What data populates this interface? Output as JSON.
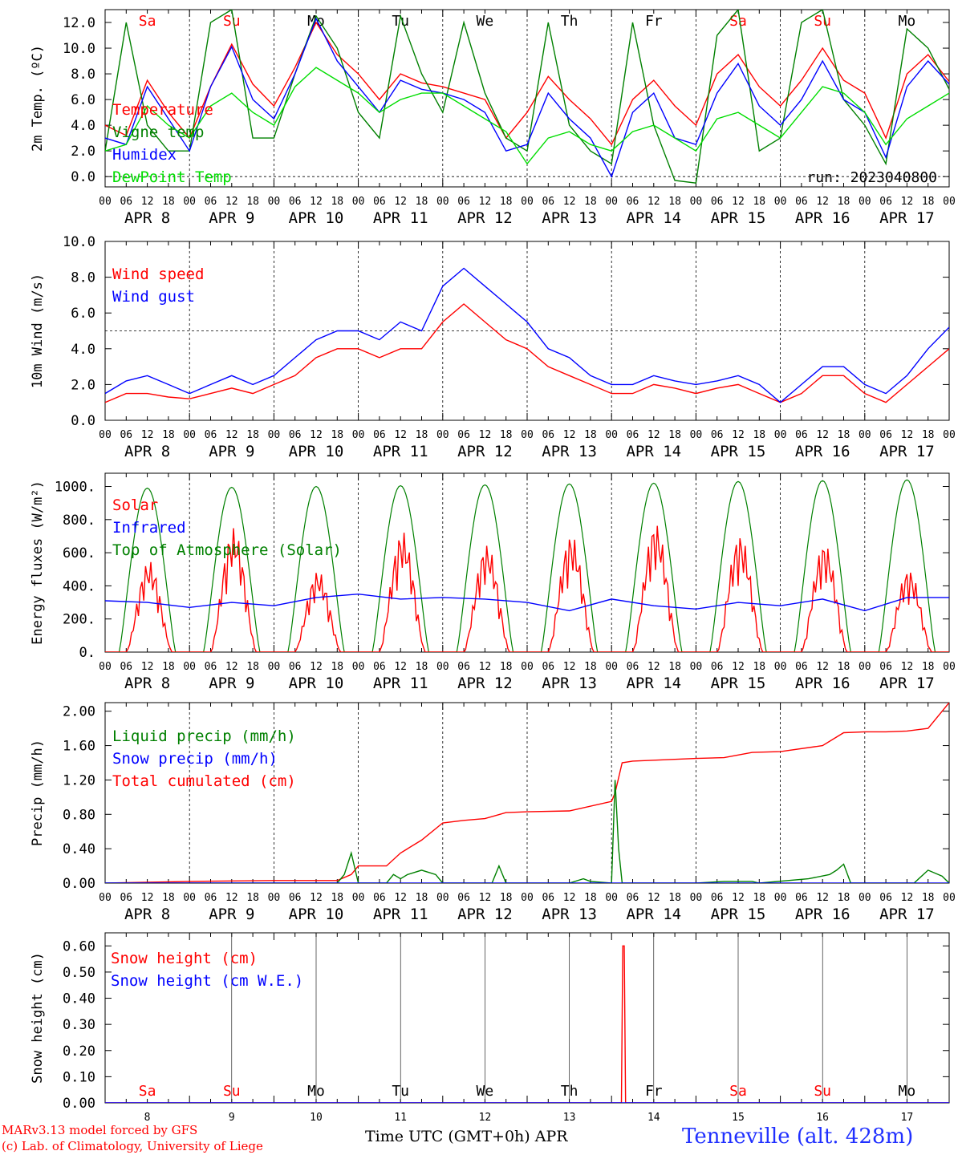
{
  "meta": {
    "title": "Tenneville (alt. 428m)",
    "model": "MARv3.13 model forced by GFS",
    "credit": "(c) Lab. of Climatology, University of Liege",
    "xlabel": "Time UTC (GMT+0h) APR",
    "run": "run: 2023040800",
    "colors": {
      "red": "#ff0000",
      "green": "#008000",
      "blue": "#0000ff",
      "light_green": "#00dd00",
      "purple": "#800080"
    }
  },
  "chart_data": [
    {
      "type": "line",
      "ylabel": "2m Temp. (ºC)",
      "ylim": [
        -0.8,
        13
      ],
      "yticks": [
        0.0,
        2.0,
        4.0,
        6.0,
        8.0,
        10.0,
        12.0
      ],
      "ytick_labels": [
        "0.0",
        "2.0",
        "4.0",
        "6.0",
        "8.0",
        "10.0",
        "12.0"
      ],
      "xlim_hours": [
        0,
        240
      ],
      "day_labels": [
        "APR 8",
        "APR 9",
        "APR 10",
        "APR 11",
        "APR 12",
        "APR 13",
        "APR 14",
        "APR 15",
        "APR 16",
        "APR 17"
      ],
      "hour_ticks": [
        "00",
        "06",
        "12",
        "18"
      ],
      "weekdays": [
        "Sa",
        "Su",
        "Mo",
        "Tu",
        "We",
        "Th",
        "Fr",
        "Sa",
        "Su",
        "Mo"
      ],
      "weekday_colors": [
        "#ff0000",
        "#ff0000",
        "#000000",
        "#000000",
        "#000000",
        "#000000",
        "#000000",
        "#ff0000",
        "#ff0000",
        "#000000"
      ],
      "hline": 0,
      "legend": [
        "Temperature",
        "Vigne temp",
        "Humidex",
        "DewPoint Temp"
      ],
      "series": [
        {
          "name": "Temperature",
          "color": "#ff0000",
          "x": [
            0,
            6,
            12,
            18,
            24,
            30,
            36,
            42,
            48,
            54,
            60,
            66,
            72,
            78,
            84,
            90,
            96,
            102,
            108,
            114,
            120,
            126,
            132,
            138,
            144,
            150,
            156,
            162,
            168,
            174,
            180,
            186,
            192,
            198,
            204,
            210,
            216,
            222,
            228,
            234,
            240
          ],
          "values": [
            4.0,
            3.2,
            7.5,
            5.0,
            3.0,
            7.0,
            10.3,
            7.2,
            5.5,
            8.5,
            12.0,
            9.5,
            8.0,
            6.0,
            8.0,
            7.3,
            7.0,
            6.5,
            6.0,
            3.0,
            5.0,
            7.8,
            6.0,
            4.5,
            2.5,
            6.0,
            7.5,
            5.5,
            4.0,
            8.0,
            9.5,
            7.0,
            5.5,
            7.5,
            10.0,
            7.5,
            6.5,
            3.0,
            8.0,
            9.5,
            7.4
          ]
        },
        {
          "name": "Vigne temp",
          "color": "#008000",
          "x": [
            0,
            6,
            12,
            18,
            24,
            30,
            36,
            42,
            48,
            54,
            60,
            66,
            72,
            78,
            84,
            90,
            96,
            102,
            108,
            114,
            120,
            126,
            132,
            138,
            144,
            150,
            156,
            162,
            168,
            174,
            180,
            186,
            192,
            198,
            204,
            210,
            216,
            222,
            228,
            234,
            240
          ],
          "values": [
            2.0,
            12.0,
            4.0,
            2.0,
            2.0,
            12.0,
            13.0,
            3.0,
            3.0,
            8.0,
            12.5,
            10.0,
            5.0,
            3.0,
            12.5,
            8.0,
            5.0,
            12.0,
            6.5,
            3.0,
            2.0,
            12.0,
            4.0,
            2.0,
            1.0,
            12.0,
            4.0,
            -0.3,
            -0.5,
            11.0,
            13.0,
            2.0,
            3.0,
            12.0,
            13.0,
            6.0,
            4.0,
            1.0,
            11.5,
            10.0,
            6.8
          ]
        },
        {
          "name": "Humidex",
          "color": "#0000ff",
          "x": [
            0,
            6,
            12,
            18,
            24,
            30,
            36,
            42,
            48,
            54,
            60,
            66,
            72,
            78,
            84,
            90,
            96,
            102,
            108,
            114,
            120,
            126,
            132,
            138,
            144,
            150,
            156,
            162,
            168,
            174,
            180,
            186,
            192,
            198,
            204,
            210,
            216,
            222,
            228,
            234,
            240
          ],
          "values": [
            3.0,
            2.5,
            7.0,
            4.5,
            2.0,
            7.0,
            10.1,
            6.0,
            4.5,
            8.0,
            12.3,
            9.0,
            7.0,
            5.0,
            7.5,
            6.8,
            6.5,
            6.0,
            5.0,
            2.0,
            2.5,
            6.5,
            4.5,
            3.0,
            0.0,
            5.0,
            6.5,
            3.0,
            2.5,
            6.5,
            8.8,
            5.5,
            4.0,
            6.0,
            9.0,
            6.0,
            5.0,
            1.5,
            7.0,
            9.0,
            7.2
          ]
        },
        {
          "name": "DewPoint Temp",
          "color": "#00dd00",
          "x": [
            0,
            6,
            12,
            18,
            24,
            30,
            36,
            42,
            48,
            54,
            60,
            66,
            72,
            78,
            84,
            90,
            96,
            102,
            108,
            114,
            120,
            126,
            132,
            138,
            144,
            150,
            156,
            162,
            168,
            174,
            180,
            186,
            192,
            198,
            204,
            210,
            216,
            222,
            228,
            234,
            240
          ],
          "values": [
            2.0,
            2.5,
            5.5,
            4.0,
            3.0,
            5.5,
            6.5,
            5.0,
            4.0,
            7.0,
            8.5,
            7.5,
            6.5,
            5.0,
            6.0,
            6.5,
            6.5,
            5.5,
            4.5,
            3.5,
            1.0,
            3.0,
            3.5,
            2.5,
            2.0,
            3.5,
            4.0,
            3.0,
            2.0,
            4.5,
            5.0,
            4.0,
            3.0,
            5.0,
            7.0,
            6.5,
            5.0,
            2.5,
            4.5,
            5.5,
            6.5
          ]
        }
      ]
    },
    {
      "type": "line",
      "ylabel": "10m Wind (m/s)",
      "ylim": [
        0,
        10
      ],
      "yticks": [
        0.0,
        2.0,
        4.0,
        6.0,
        8.0,
        10.0
      ],
      "ytick_labels": [
        "0.0",
        "2.0",
        "4.0",
        "6.0",
        "8.0",
        "10.0"
      ],
      "xlim_hours": [
        0,
        240
      ],
      "day_labels": [
        "APR 8",
        "APR 9",
        "APR 10",
        "APR 11",
        "APR 12",
        "APR 13",
        "APR 14",
        "APR 15",
        "APR 16",
        "APR 17"
      ],
      "hour_ticks": [
        "00",
        "06",
        "12",
        "18"
      ],
      "hline": 5.0,
      "legend": [
        "Wind speed",
        "Wind gust"
      ],
      "series": [
        {
          "name": "Wind speed",
          "color": "#ff0000",
          "x": [
            0,
            6,
            12,
            18,
            24,
            30,
            36,
            42,
            48,
            54,
            60,
            66,
            72,
            78,
            84,
            90,
            96,
            102,
            108,
            114,
            120,
            126,
            132,
            138,
            144,
            150,
            156,
            162,
            168,
            174,
            180,
            186,
            192,
            198,
            204,
            210,
            216,
            222,
            228,
            234,
            240
          ],
          "values": [
            1.0,
            1.5,
            1.5,
            1.3,
            1.2,
            1.5,
            1.8,
            1.5,
            2.0,
            2.5,
            3.5,
            4.0,
            4.0,
            3.5,
            4.0,
            4.0,
            5.5,
            6.5,
            5.5,
            4.5,
            4.0,
            3.0,
            2.5,
            2.0,
            1.5,
            1.5,
            2.0,
            1.8,
            1.5,
            1.8,
            2.0,
            1.5,
            1.0,
            1.5,
            2.5,
            2.5,
            1.5,
            1.0,
            2.0,
            3.0,
            4.0
          ]
        },
        {
          "name": "Wind gust",
          "color": "#0000ff",
          "x": [
            0,
            6,
            12,
            18,
            24,
            30,
            36,
            42,
            48,
            54,
            60,
            66,
            72,
            78,
            84,
            90,
            96,
            102,
            108,
            114,
            120,
            126,
            132,
            138,
            144,
            150,
            156,
            162,
            168,
            174,
            180,
            186,
            192,
            198,
            204,
            210,
            216,
            222,
            228,
            234,
            240
          ],
          "values": [
            1.5,
            2.2,
            2.5,
            2.0,
            1.5,
            2.0,
            2.5,
            2.0,
            2.5,
            3.5,
            4.5,
            5.0,
            5.0,
            4.5,
            5.5,
            5.0,
            7.5,
            8.5,
            7.5,
            6.5,
            5.5,
            4.0,
            3.5,
            2.5,
            2.0,
            2.0,
            2.5,
            2.2,
            2.0,
            2.2,
            2.5,
            2.0,
            1.0,
            2.0,
            3.0,
            3.0,
            2.0,
            1.5,
            2.5,
            4.0,
            5.2
          ]
        }
      ]
    },
    {
      "type": "line",
      "ylabel": "Energy fluxes (W/m²)",
      "ylim": [
        0,
        1080
      ],
      "yticks": [
        0,
        200,
        400,
        600,
        800,
        1000
      ],
      "ytick_labels": [
        "0.",
        "200.",
        "400.",
        "600.",
        "800.",
        "1000."
      ],
      "xlim_hours": [
        0,
        240
      ],
      "day_labels": [
        "APR 8",
        "APR 9",
        "APR 10",
        "APR 11",
        "APR 12",
        "APR 13",
        "APR 14",
        "APR 15",
        "APR 16",
        "APR 17"
      ],
      "hour_ticks": [
        "00",
        "06",
        "12",
        "18"
      ],
      "legend": [
        "Solar",
        "Infrared",
        "Top of Atmosphere (Solar)"
      ],
      "toa_peaks": [
        990,
        995,
        1000,
        1005,
        1010,
        1015,
        1020,
        1030,
        1035,
        1040
      ],
      "solar_peaks": [
        550,
        750,
        490,
        730,
        650,
        710,
        780,
        710,
        660,
        500
      ],
      "series": [
        {
          "name": "Infrared",
          "color": "#0000ff",
          "x": [
            0,
            12,
            24,
            36,
            48,
            60,
            72,
            84,
            96,
            108,
            120,
            132,
            144,
            156,
            168,
            180,
            192,
            204,
            216,
            228,
            240
          ],
          "values": [
            310,
            300,
            270,
            300,
            280,
            330,
            350,
            320,
            330,
            320,
            300,
            250,
            320,
            280,
            260,
            300,
            280,
            320,
            250,
            330,
            330
          ]
        }
      ]
    },
    {
      "type": "line",
      "ylabel": "Precip (mm/h)",
      "ylim": [
        0,
        2.1
      ],
      "yticks": [
        0.0,
        0.4,
        0.8,
        1.2,
        1.6,
        2.0
      ],
      "ytick_labels": [
        "0.00",
        "0.40",
        "0.80",
        "1.20",
        "1.60",
        "2.00"
      ],
      "xlim_hours": [
        0,
        240
      ],
      "day_labels": [
        "APR 8",
        "APR 9",
        "APR 10",
        "APR 11",
        "APR 12",
        "APR 13",
        "APR 14",
        "APR 15",
        "APR 16",
        "APR 17"
      ],
      "hour_ticks": [
        "00",
        "06",
        "12",
        "18"
      ],
      "legend": [
        "Liquid precip (mm/h)",
        "Snow precip (mm/h)",
        "Total cumulated (cm)"
      ],
      "series": [
        {
          "name": "Total cumulated",
          "color": "#ff0000",
          "x": [
            0,
            24,
            48,
            66,
            70,
            72,
            80,
            84,
            90,
            96,
            102,
            108,
            114,
            120,
            132,
            144,
            145,
            147,
            150,
            168,
            176,
            184,
            192,
            204,
            210,
            216,
            222,
            228,
            234,
            240
          ],
          "values": [
            0.0,
            0.02,
            0.03,
            0.03,
            0.1,
            0.2,
            0.2,
            0.35,
            0.5,
            0.7,
            0.73,
            0.75,
            0.82,
            0.83,
            0.84,
            0.95,
            1.05,
            1.4,
            1.42,
            1.45,
            1.46,
            1.52,
            1.53,
            1.6,
            1.75,
            1.76,
            1.76,
            1.77,
            1.8,
            2.1
          ]
        },
        {
          "name": "Liquid precip",
          "color": "#008000",
          "x": [
            0,
            66,
            68,
            70,
            72,
            80,
            82,
            84,
            86,
            90,
            94,
            96,
            110,
            112,
            114,
            132,
            136,
            138,
            144,
            145,
            146,
            147,
            150,
            168,
            176,
            184,
            186,
            200,
            206,
            208,
            210,
            212,
            230,
            234,
            238,
            240
          ],
          "values": [
            0,
            0,
            0.1,
            0.35,
            0,
            0,
            0.1,
            0.05,
            0.1,
            0.15,
            0.1,
            0,
            0,
            0.2,
            0,
            0,
            0.05,
            0.02,
            0,
            1.2,
            0.4,
            0,
            0,
            0,
            0.02,
            0.02,
            0,
            0.05,
            0.1,
            0.15,
            0.22,
            0,
            0,
            0.15,
            0.08,
            0
          ]
        },
        {
          "name": "Snow precip",
          "color": "#0000ff",
          "x": [
            0,
            240
          ],
          "values": [
            0,
            0
          ]
        }
      ]
    },
    {
      "type": "line",
      "ylabel": "Snow height (cm)",
      "ylim": [
        0,
        0.65
      ],
      "yticks": [
        0.0,
        0.1,
        0.2,
        0.3,
        0.4,
        0.5,
        0.6
      ],
      "ytick_labels": [
        "0.00",
        "0.10",
        "0.20",
        "0.30",
        "0.40",
        "0.50",
        "0.60"
      ],
      "xlim_hours": [
        0,
        240
      ],
      "day_numbers": [
        "8",
        "9",
        "10",
        "11",
        "12",
        "13",
        "14",
        "15",
        "16",
        "17"
      ],
      "weekdays": [
        "Sa",
        "Su",
        "Mo",
        "Tu",
        "We",
        "Th",
        "Fr",
        "Sa",
        "Su",
        "Mo"
      ],
      "weekday_colors": [
        "#ff0000",
        "#ff0000",
        "#000000",
        "#000000",
        "#000000",
        "#000000",
        "#000000",
        "#ff0000",
        "#ff0000",
        "#000000"
      ],
      "legend": [
        "Snow height (cm)",
        "Snow height (cm W.E.)"
      ],
      "series": [
        {
          "name": "Snow height (cm)",
          "color": "#ff0000",
          "x": [
            0,
            146.8,
            147.2,
            147.6,
            148.0,
            240
          ],
          "values": [
            0,
            0,
            0.6,
            0.6,
            0,
            0
          ]
        },
        {
          "name": "Snow height (cm W.E.)",
          "color": "#0000ff",
          "x": [
            0,
            240
          ],
          "values": [
            0,
            0
          ]
        }
      ]
    }
  ]
}
